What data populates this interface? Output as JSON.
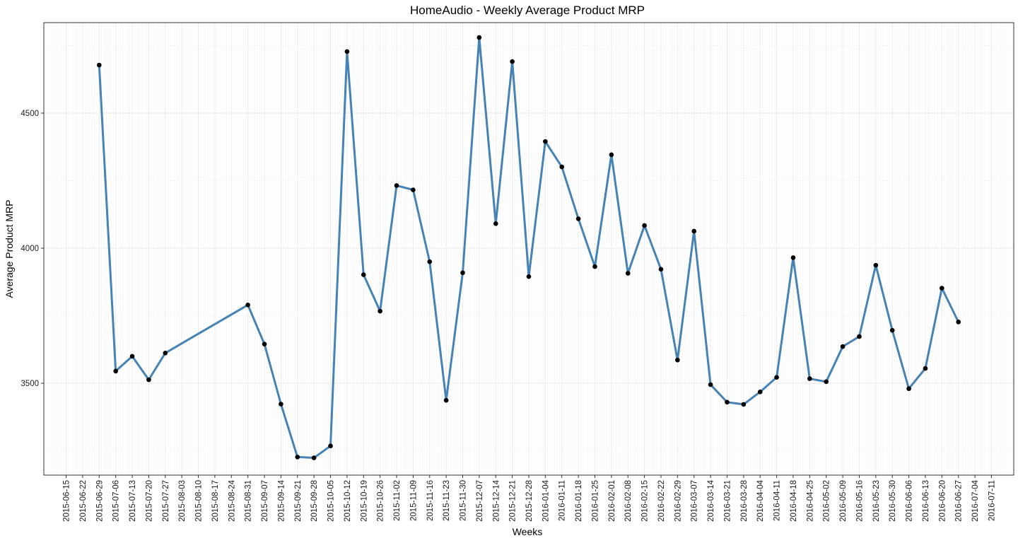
{
  "chart_data": {
    "type": "line",
    "title": "HomeAudio - Weekly Average Product MRP",
    "xlabel": "Weeks",
    "ylabel": "Average Product MRP",
    "x_ticks": [
      "2015-06-15",
      "2015-06-22",
      "2015-06-29",
      "2015-07-06",
      "2015-07-13",
      "2015-07-20",
      "2015-07-27",
      "2015-08-03",
      "2015-08-10",
      "2015-08-17",
      "2015-08-24",
      "2015-08-31",
      "2015-09-07",
      "2015-09-14",
      "2015-09-21",
      "2015-09-28",
      "2015-10-05",
      "2015-10-12",
      "2015-10-19",
      "2015-10-26",
      "2015-11-02",
      "2015-11-09",
      "2015-11-16",
      "2015-11-23",
      "2015-11-30",
      "2015-12-07",
      "2015-12-14",
      "2015-12-21",
      "2015-12-28",
      "2016-01-04",
      "2016-01-11",
      "2016-01-18",
      "2016-01-25",
      "2016-02-01",
      "2016-02-08",
      "2016-02-15",
      "2016-02-22",
      "2016-02-29",
      "2016-03-07",
      "2016-03-14",
      "2016-03-21",
      "2016-03-28",
      "2016-04-04",
      "2016-04-11",
      "2016-04-18",
      "2016-04-25",
      "2016-05-02",
      "2016-05-09",
      "2016-05-16",
      "2016-05-23",
      "2016-05-30",
      "2016-06-06",
      "2016-06-13",
      "2016-06-20",
      "2016-06-27",
      "2016-07-04",
      "2016-07-11"
    ],
    "y_ticks": [
      3500,
      4000,
      4500
    ],
    "ylim": [
      3160,
      4835
    ],
    "grid": true,
    "line_color": "#4682B4",
    "point_color": "#000000",
    "x": [
      "2015-06-29",
      "2015-07-06",
      "2015-07-13",
      "2015-07-20",
      "2015-07-27",
      "2015-08-31",
      "2015-09-07",
      "2015-09-14",
      "2015-09-21",
      "2015-09-28",
      "2015-10-05",
      "2015-10-12",
      "2015-10-19",
      "2015-10-26",
      "2015-11-02",
      "2015-11-09",
      "2015-11-16",
      "2015-11-23",
      "2015-11-30",
      "2015-12-07",
      "2015-12-14",
      "2015-12-21",
      "2015-12-28",
      "2016-01-04",
      "2016-01-11",
      "2016-01-18",
      "2016-01-25",
      "2016-02-01",
      "2016-02-08",
      "2016-02-15",
      "2016-02-22",
      "2016-02-29",
      "2016-03-07",
      "2016-03-14",
      "2016-03-21",
      "2016-03-28",
      "2016-04-04",
      "2016-04-11",
      "2016-04-18",
      "2016-04-25",
      "2016-05-02",
      "2016-05-09",
      "2016-05-16",
      "2016-05-23",
      "2016-05-30",
      "2016-06-06",
      "2016-06-13",
      "2016-06-20",
      "2016-06-27"
    ],
    "series": [
      {
        "values": [
          4678,
          3545,
          3600,
          3513,
          3612,
          3790,
          3645,
          3423,
          3227,
          3224,
          3268,
          4728,
          3902,
          3767,
          4232,
          4216,
          3950,
          3437,
          3909,
          4780,
          4091,
          4691,
          3895,
          4395,
          4301,
          4109,
          3932,
          4346,
          3907,
          4084,
          3922,
          3586,
          4063,
          3495,
          3430,
          3422,
          3468,
          3522,
          3965,
          3517,
          3506,
          3636,
          3673,
          3937,
          3696,
          3480,
          3555,
          3852,
          3727
        ]
      }
    ]
  }
}
